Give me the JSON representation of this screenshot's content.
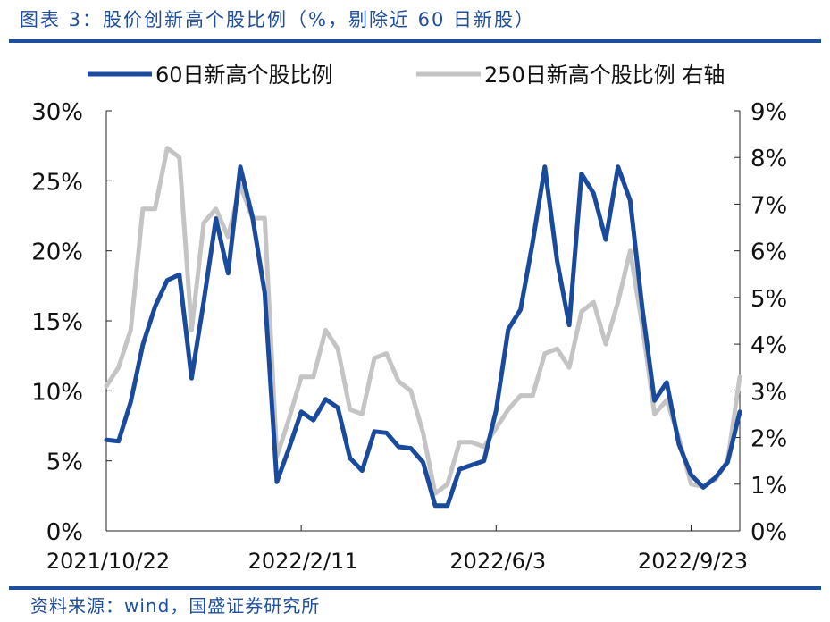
{
  "figure": {
    "title": "图表 3：股价创新高个股比例（%，剔除近 60 日新股）",
    "source": "资料来源：wind，国盛证券研究所"
  },
  "chart_data": {
    "type": "line",
    "x_tick_labels": [
      "2021/10/22",
      "2022/2/11",
      "2022/6/3",
      "2022/9/23"
    ],
    "x_tick_positions": [
      0,
      16,
      32,
      48
    ],
    "y_left": {
      "ylim": [
        0,
        30
      ],
      "ticks": [
        "0%",
        "5%",
        "10%",
        "15%",
        "20%",
        "25%",
        "30%"
      ]
    },
    "y_right": {
      "ylim": [
        0,
        9
      ],
      "ticks": [
        "0%",
        "1%",
        "2%",
        "3%",
        "4%",
        "5%",
        "6%",
        "7%",
        "8%",
        "9%"
      ]
    },
    "grid": false,
    "legend_position": "top",
    "series": [
      {
        "name": "60日新高个股比例",
        "axis": "left",
        "color": "#1a4a9c",
        "values": [
          6.5,
          6.4,
          9.2,
          13.3,
          16.0,
          17.9,
          18.3,
          10.9,
          16.4,
          22.3,
          18.4,
          26.0,
          22.4,
          17.0,
          3.5,
          5.9,
          8.5,
          7.9,
          9.4,
          8.8,
          5.2,
          4.3,
          7.1,
          7.0,
          6.0,
          5.9,
          4.9,
          1.8,
          1.8,
          4.4,
          4.7,
          5.0,
          8.6,
          14.4,
          15.8,
          20.6,
          26.0,
          19.3,
          14.7,
          25.5,
          24.1,
          20.8,
          26.0,
          23.6,
          15.9,
          9.3,
          10.6,
          6.2,
          4.0,
          3.1,
          3.8,
          4.9,
          8.5
        ]
      },
      {
        "name": "250日新高个股比例 右轴",
        "axis": "right",
        "color": "#c4c4c4",
        "values": [
          3.1,
          3.5,
          4.3,
          6.9,
          6.9,
          8.2,
          8.0,
          4.3,
          6.6,
          6.9,
          6.3,
          7.4,
          6.7,
          6.7,
          1.6,
          2.4,
          3.3,
          3.3,
          4.3,
          3.9,
          2.6,
          2.5,
          3.7,
          3.8,
          3.2,
          3.0,
          2.1,
          0.8,
          1.0,
          1.9,
          1.9,
          1.8,
          2.2,
          2.6,
          2.9,
          2.9,
          3.8,
          3.9,
          3.5,
          4.7,
          4.9,
          4.0,
          4.9,
          6.0,
          4.4,
          2.5,
          2.8,
          2.0,
          1.0,
          0.95,
          1.1,
          1.5,
          3.3
        ]
      }
    ]
  }
}
